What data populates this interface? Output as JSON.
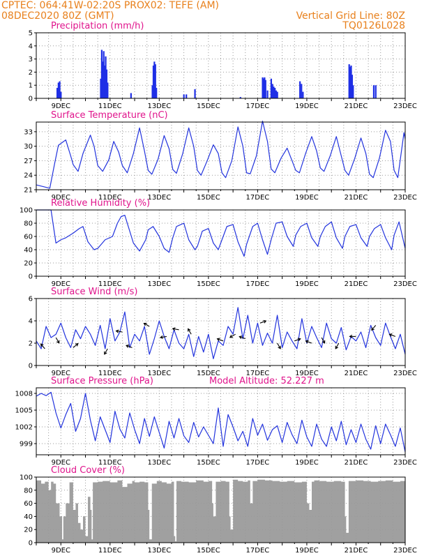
{
  "header": {
    "line1_left": "CPTEC:   064:41W-02:20S   PROX02: TEFE (AM)",
    "line2_left": "08DEC2020 80Z (GMT)",
    "line2_right": "Vertical Grid Line: 80Z",
    "line3_right": "TQ0126L028",
    "text_color": "#e8801c"
  },
  "colors": {
    "series": "#2233dd",
    "bars": "#1f2fe6",
    "cloud": "#a0a0a0",
    "title": "#e0148c",
    "grid": "#999999"
  },
  "x_ticks": [
    "9DEC",
    "11DEC",
    "13DEC",
    "15DEC",
    "17DEC",
    "19DEC",
    "21DEC",
    "23DEC"
  ],
  "chart_data": [
    {
      "id": "precip",
      "type": "bar",
      "title": "Precipitation (mm/h)",
      "ylim": [
        0,
        5
      ],
      "yticks": [
        "0",
        "1",
        "2",
        "3",
        "4",
        "5"
      ],
      "bars": [
        [
          8.85,
          0.8
        ],
        [
          8.9,
          1.2
        ],
        [
          8.95,
          1.3
        ],
        [
          9.0,
          0.5
        ],
        [
          10.62,
          1.5
        ],
        [
          10.66,
          3.7
        ],
        [
          10.7,
          2.8
        ],
        [
          10.74,
          3.6
        ],
        [
          10.78,
          2.5
        ],
        [
          10.82,
          3.2
        ],
        [
          10.86,
          2.2
        ],
        [
          10.9,
          1.2
        ],
        [
          11.85,
          0.4
        ],
        [
          12.72,
          1.0
        ],
        [
          12.76,
          2.5
        ],
        [
          12.8,
          2.8
        ],
        [
          12.84,
          2.6
        ],
        [
          12.88,
          0.8
        ],
        [
          14.0,
          0.3
        ],
        [
          14.1,
          0.3
        ],
        [
          14.45,
          0.7
        ],
        [
          16.3,
          0.1
        ],
        [
          17.2,
          1.6
        ],
        [
          17.24,
          1.5
        ],
        [
          17.28,
          1.6
        ],
        [
          17.32,
          1.4
        ],
        [
          17.4,
          0.6
        ],
        [
          17.55,
          1.5
        ],
        [
          17.6,
          1.1
        ],
        [
          17.65,
          0.9
        ],
        [
          17.7,
          0.8
        ],
        [
          17.75,
          0.6
        ],
        [
          17.8,
          0.5
        ],
        [
          18.72,
          1.3
        ],
        [
          18.78,
          1.1
        ],
        [
          18.84,
          0.5
        ],
        [
          20.72,
          2.6
        ],
        [
          20.76,
          2.4
        ],
        [
          20.8,
          2.5
        ],
        [
          20.84,
          1.8
        ],
        [
          20.88,
          1.0
        ],
        [
          21.72,
          1.0
        ],
        [
          21.8,
          1.0
        ]
      ]
    },
    {
      "id": "temp",
      "type": "line",
      "title": "Surface Temperature (nC)",
      "ylim": [
        21,
        35
      ],
      "yticks": [
        "21",
        "24",
        "27",
        "30",
        "33"
      ],
      "x": [
        8.0,
        8.4,
        8.55,
        8.75,
        8.9,
        9.2,
        9.4,
        9.5,
        9.7,
        9.9,
        10.2,
        10.35,
        10.5,
        10.7,
        10.95,
        11.15,
        11.35,
        11.5,
        11.7,
        11.95,
        12.2,
        12.4,
        12.55,
        12.7,
        12.95,
        13.2,
        13.4,
        13.55,
        13.7,
        13.95,
        14.2,
        14.4,
        14.55,
        14.7,
        14.95,
        15.2,
        15.4,
        15.55,
        15.7,
        15.95,
        16.2,
        16.4,
        16.55,
        16.7,
        16.95,
        17.2,
        17.4,
        17.55,
        17.7,
        17.95,
        18.2,
        18.4,
        18.55,
        18.7,
        18.95,
        19.2,
        19.4,
        19.55,
        19.7,
        19.95,
        20.2,
        20.4,
        20.55,
        20.7,
        20.95,
        21.2,
        21.4,
        21.55,
        21.7,
        21.95,
        22.2,
        22.4,
        22.55,
        22.7,
        22.95,
        23.0
      ],
      "y": [
        22.0,
        21.5,
        21.3,
        26.5,
        30.2,
        31.3,
        28.0,
        26.2,
        24.8,
        28.5,
        32.3,
        30.0,
        26.0,
        24.8,
        27.2,
        31.0,
        28.8,
        26.0,
        24.5,
        28.5,
        33.8,
        29.0,
        25.0,
        24.2,
        27.3,
        32.2,
        29.5,
        25.2,
        24.4,
        28.4,
        33.8,
        30.0,
        25.0,
        24.0,
        27.0,
        30.3,
        28.5,
        24.5,
        23.5,
        27.0,
        34.0,
        30.0,
        24.5,
        24.3,
        28.0,
        35.2,
        31.0,
        25.3,
        24.5,
        27.5,
        29.6,
        27.0,
        25.0,
        24.5,
        28.5,
        32.0,
        29.0,
        25.5,
        24.8,
        28.0,
        32.0,
        28.0,
        25.0,
        24.0,
        27.5,
        31.7,
        28.5,
        24.2,
        23.5,
        27.5,
        33.3,
        31.0,
        25.0,
        23.5,
        32.8,
        31.5
      ]
    },
    {
      "id": "rh",
      "type": "line",
      "title": "Relative Humidity (%)",
      "ylim": [
        0,
        100
      ],
      "yticks": [
        "0",
        "20",
        "40",
        "60",
        "80",
        "100"
      ],
      "x": [
        8.0,
        8.6,
        8.8,
        9.0,
        9.2,
        9.5,
        9.75,
        9.9,
        10.1,
        10.35,
        10.5,
        10.8,
        11.1,
        11.3,
        11.45,
        11.6,
        11.95,
        12.2,
        12.45,
        12.55,
        12.75,
        13.0,
        13.2,
        13.4,
        13.55,
        13.7,
        14.0,
        14.2,
        14.45,
        14.55,
        14.75,
        15.0,
        15.2,
        15.4,
        15.55,
        15.75,
        16.0,
        16.2,
        16.45,
        16.55,
        16.8,
        17.0,
        17.2,
        17.4,
        17.55,
        17.75,
        18.0,
        18.2,
        18.45,
        18.55,
        18.75,
        19.0,
        19.2,
        19.45,
        19.55,
        19.75,
        20.0,
        20.2,
        20.45,
        20.55,
        20.75,
        21.0,
        21.2,
        21.45,
        21.55,
        21.75,
        22.0,
        22.2,
        22.45,
        22.55,
        22.75,
        23.0
      ],
      "y": [
        100,
        100,
        50,
        55,
        58,
        65,
        72,
        75,
        52,
        40,
        42,
        55,
        60,
        80,
        90,
        92,
        50,
        38,
        55,
        70,
        75,
        60,
        42,
        36,
        58,
        75,
        80,
        55,
        40,
        45,
        68,
        72,
        50,
        40,
        55,
        75,
        78,
        52,
        30,
        48,
        75,
        80,
        55,
        33,
        55,
        80,
        82,
        60,
        45,
        62,
        75,
        80,
        58,
        45,
        60,
        75,
        82,
        58,
        42,
        60,
        75,
        78,
        58,
        45,
        60,
        72,
        78,
        58,
        40,
        62,
        82,
        42
      ]
    },
    {
      "id": "wind",
      "type": "line",
      "title": "Surface Wind (m/s)",
      "ylim": [
        0,
        6
      ],
      "yticks": [
        "0",
        "2",
        "4",
        "6"
      ],
      "x": [
        8.0,
        8.2,
        8.4,
        8.6,
        8.8,
        9.0,
        9.2,
        9.4,
        9.6,
        9.8,
        10.0,
        10.2,
        10.4,
        10.6,
        10.8,
        11.0,
        11.2,
        11.4,
        11.6,
        11.8,
        12.0,
        12.2,
        12.4,
        12.6,
        12.8,
        13.0,
        13.2,
        13.4,
        13.6,
        13.8,
        14.0,
        14.2,
        14.4,
        14.6,
        14.8,
        15.0,
        15.2,
        15.4,
        15.6,
        15.8,
        16.0,
        16.2,
        16.4,
        16.6,
        16.8,
        17.0,
        17.2,
        17.4,
        17.6,
        17.8,
        18.0,
        18.2,
        18.4,
        18.6,
        18.8,
        19.0,
        19.2,
        19.4,
        19.6,
        19.8,
        20.0,
        20.2,
        20.4,
        20.6,
        20.8,
        21.0,
        21.2,
        21.4,
        21.6,
        21.8,
        22.0,
        22.2,
        22.4,
        22.6,
        22.8,
        23.0
      ],
      "y": [
        2.2,
        1.5,
        3.5,
        2.5,
        2.8,
        3.8,
        2.5,
        1.6,
        3.2,
        2.4,
        3.5,
        2.8,
        1.8,
        3.6,
        1.5,
        4.2,
        2.2,
        3.0,
        4.8,
        1.6,
        2.8,
        2.2,
        3.5,
        1.0,
        2.4,
        4.0,
        2.6,
        1.5,
        3.2,
        2.0,
        1.5,
        2.8,
        0.8,
        2.6,
        1.2,
        2.8,
        0.6,
        2.2,
        1.8,
        3.5,
        2.8,
        5.2,
        2.4,
        4.5,
        2.0,
        3.8,
        1.8,
        2.9,
        2.0,
        4.5,
        1.6,
        3.0,
        2.2,
        1.5,
        4.2,
        2.0,
        3.5,
        2.5,
        1.6,
        3.8,
        2.4,
        2.0,
        3.4,
        1.4,
        2.6,
        2.2,
        3.0,
        1.6,
        3.6,
        2.5,
        1.8,
        3.8,
        2.6,
        1.5,
        2.8,
        1.0
      ]
    },
    {
      "id": "pres",
      "type": "line",
      "title": "Surface Pressure (hPa)",
      "annotation": "Model Altitude: 52.227  m",
      "ylim": [
        997,
        1009
      ],
      "yticks": [
        "999",
        "1002",
        "1005",
        "1008"
      ],
      "x": [
        8.0,
        8.2,
        8.4,
        8.6,
        8.8,
        9.0,
        9.2,
        9.4,
        9.6,
        9.8,
        10.0,
        10.2,
        10.4,
        10.6,
        10.8,
        11.0,
        11.2,
        11.4,
        11.6,
        11.8,
        12.0,
        12.2,
        12.4,
        12.6,
        12.8,
        13.0,
        13.2,
        13.4,
        13.6,
        13.8,
        14.0,
        14.2,
        14.4,
        14.6,
        14.8,
        15.0,
        15.2,
        15.4,
        15.6,
        15.8,
        16.0,
        16.2,
        16.4,
        16.6,
        16.8,
        17.0,
        17.2,
        17.4,
        17.6,
        17.8,
        18.0,
        18.2,
        18.4,
        18.6,
        18.8,
        19.0,
        19.2,
        19.4,
        19.6,
        19.8,
        20.0,
        20.2,
        20.4,
        20.6,
        20.8,
        21.0,
        21.2,
        21.4,
        21.6,
        21.8,
        22.0,
        22.2,
        22.4,
        22.6,
        22.8,
        23.0
      ],
      "y": [
        1007.5,
        1008.0,
        1007.6,
        1008.2,
        1004.5,
        1001.8,
        1004.2,
        1006.2,
        1001.2,
        1003.5,
        1008.0,
        1003.2,
        999.5,
        1003.8,
        1001.5,
        999.2,
        1004.8,
        1001.6,
        1000.0,
        1004.5,
        1001.5,
        999.0,
        1003.5,
        1000.3,
        1003.8,
        1001.0,
        998.2,
        1003.0,
        1000.0,
        1003.5,
        1000.4,
        999.2,
        1002.8,
        1000.2,
        1002.0,
        1000.5,
        999.0,
        1005.4,
        998.5,
        1004.2,
        1002.0,
        999.5,
        1001.2,
        998.5,
        1003.5,
        1000.5,
        1002.5,
        999.6,
        1001.5,
        1002.2,
        999.2,
        1002.8,
        1000.6,
        999.0,
        1003.2,
        1000.2,
        998.5,
        1002.5,
        999.8,
        998.5,
        1002.0,
        999.5,
        1003.0,
        998.8,
        1001.5,
        999.2,
        1002.5,
        999.8,
        998.0,
        1002.2,
        999.0,
        1002.5,
        1000.6,
        998.5,
        1001.8,
        997.5
      ]
    },
    {
      "id": "cloud",
      "type": "area",
      "title": "Cloud Cover (%)",
      "ylim": [
        0,
        100
      ],
      "yticks": [
        "0",
        "20",
        "40",
        "60",
        "80",
        "100"
      ],
      "x": [
        8.0,
        8.2,
        8.35,
        8.5,
        8.6,
        8.7,
        8.8,
        8.95,
        9.05,
        9.1,
        9.2,
        9.35,
        9.5,
        9.6,
        9.7,
        9.8,
        9.9,
        10.0,
        10.1,
        10.2,
        10.25,
        10.3,
        10.5,
        10.7,
        11.0,
        11.3,
        11.5,
        11.7,
        11.9,
        12.0,
        12.2,
        12.4,
        12.55,
        12.6,
        12.7,
        12.9,
        13.1,
        13.3,
        13.5,
        13.6,
        13.65,
        13.7,
        13.9,
        14.2,
        14.5,
        14.8,
        15.0,
        15.15,
        15.2,
        15.3,
        15.5,
        15.7,
        15.85,
        15.9,
        16.0,
        16.2,
        16.4,
        16.6,
        16.7,
        16.8,
        17.0,
        17.3,
        17.6,
        17.9,
        18.2,
        18.5,
        18.8,
        19.0,
        19.1,
        19.2,
        19.3,
        19.5,
        19.8,
        20.1,
        20.4,
        20.55,
        20.6,
        20.7,
        21.0,
        21.3,
        21.6,
        21.9,
        22.2,
        22.5,
        22.8,
        23.0
      ],
      "y": [
        95,
        90,
        93,
        80,
        93,
        90,
        60,
        40,
        5,
        40,
        60,
        92,
        50,
        60,
        30,
        20,
        40,
        10,
        70,
        50,
        5,
        92,
        93,
        94,
        92,
        95,
        85,
        90,
        94,
        92,
        93,
        92,
        50,
        5,
        90,
        94,
        92,
        90,
        93,
        10,
        2,
        94,
        93,
        92,
        95,
        93,
        94,
        60,
        40,
        93,
        94,
        93,
        40,
        20,
        96,
        94,
        93,
        95,
        60,
        94,
        96,
        95,
        94,
        93,
        94,
        92,
        93,
        60,
        50,
        93,
        95,
        94,
        93,
        94,
        93,
        40,
        15,
        94,
        95,
        94,
        93,
        94,
        95,
        93,
        94,
        95
      ]
    }
  ]
}
